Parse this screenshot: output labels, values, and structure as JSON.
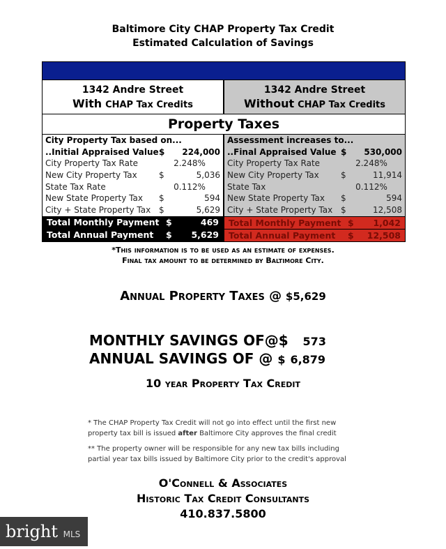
{
  "title": {
    "line1": "Baltimore City CHAP Property Tax Credit",
    "line2": "Estimated Calculation of Savings"
  },
  "table": {
    "left_header": {
      "address": "1342 Andre Street",
      "with": "With",
      "rest": "CHAP Tax Credits"
    },
    "right_header": {
      "address": "1342 Andre Street",
      "with": "Without",
      "rest": "CHAP Tax Credits"
    },
    "section": "Property Taxes",
    "left": {
      "heading": "City Property Tax based on...",
      "rows": [
        {
          "label": "..Initial Appraised Value",
          "cur": "$",
          "value": "224,000"
        },
        {
          "label": "City Property Tax Rate",
          "cur": "",
          "value": "2.248%"
        },
        {
          "label": "New City Property Tax",
          "cur": "$",
          "value": "5,036"
        },
        {
          "label": "State Tax Rate",
          "cur": "",
          "value": "0.112%"
        },
        {
          "label": "New State Property Tax",
          "cur": "$",
          "value": "594"
        },
        {
          "label": "City + State Property Tax",
          "cur": "$",
          "value": "5,629"
        }
      ],
      "totals": [
        {
          "label": "Total Monthly Payment",
          "cur": "$",
          "value": "469"
        },
        {
          "label": "Total Annual Payment",
          "cur": "$",
          "value": "5,629"
        }
      ]
    },
    "right": {
      "heading": "Assessment increases to...",
      "rows": [
        {
          "label": "..Final Appraised Value",
          "cur": "$",
          "value": "530,000"
        },
        {
          "label": "City Property Tax Rate",
          "cur": "",
          "value": "2.248%"
        },
        {
          "label": "New City Property Tax",
          "cur": "$",
          "value": "11,914"
        },
        {
          "label": "State Tax",
          "cur": "",
          "value": "0.112%"
        },
        {
          "label": "New State Property Tax",
          "cur": "$",
          "value": "594"
        },
        {
          "label": "City + State Property Tax",
          "cur": "$",
          "value": "12,508"
        }
      ],
      "totals": [
        {
          "label": "Total Monthly Payment",
          "cur": "$",
          "value": "1,042"
        },
        {
          "label": "Total Annual Payment",
          "cur": "$",
          "value": "12,508"
        }
      ]
    }
  },
  "disclaimer": {
    "line1": "*This information is to be used as an estimate of expenses.",
    "line2": "Final tax amount to be determined by Baltimore City."
  },
  "annual_taxes": {
    "label": "Annual Property Taxes @",
    "value": "$5,629"
  },
  "savings": {
    "monthly_label": "MONTHLY SAVINGS OF@$",
    "monthly_value": "573",
    "annual_label": "ANNUAL SAVINGS OF @",
    "annual_cur": "$",
    "annual_value": "6,879"
  },
  "credit_term": "10 year Property Tax Credit",
  "notes": {
    "n1a": "* The CHAP Property Tax Credit will not go into effect until the first new",
    "n1b": "property tax bill is issued ",
    "n1bold": "after",
    "n1c": " Baltimore City approves the final credit",
    "n2a": "** The property owner will be responsible for any new tax bills including",
    "n2b": "partial year tax bills issued by Baltimore City prior to the credit's approval"
  },
  "company": {
    "name": "O'Connell & Associates",
    "tagline": "Historic Tax Credit Consultants",
    "phone": "410.837.5800"
  },
  "watermark": {
    "brand": "bright",
    "suffix": "MLS"
  },
  "colors": {
    "header_bar": "#0a1f8f",
    "without_bg": "#c8c8c8",
    "total_red": "#d22a1f"
  }
}
